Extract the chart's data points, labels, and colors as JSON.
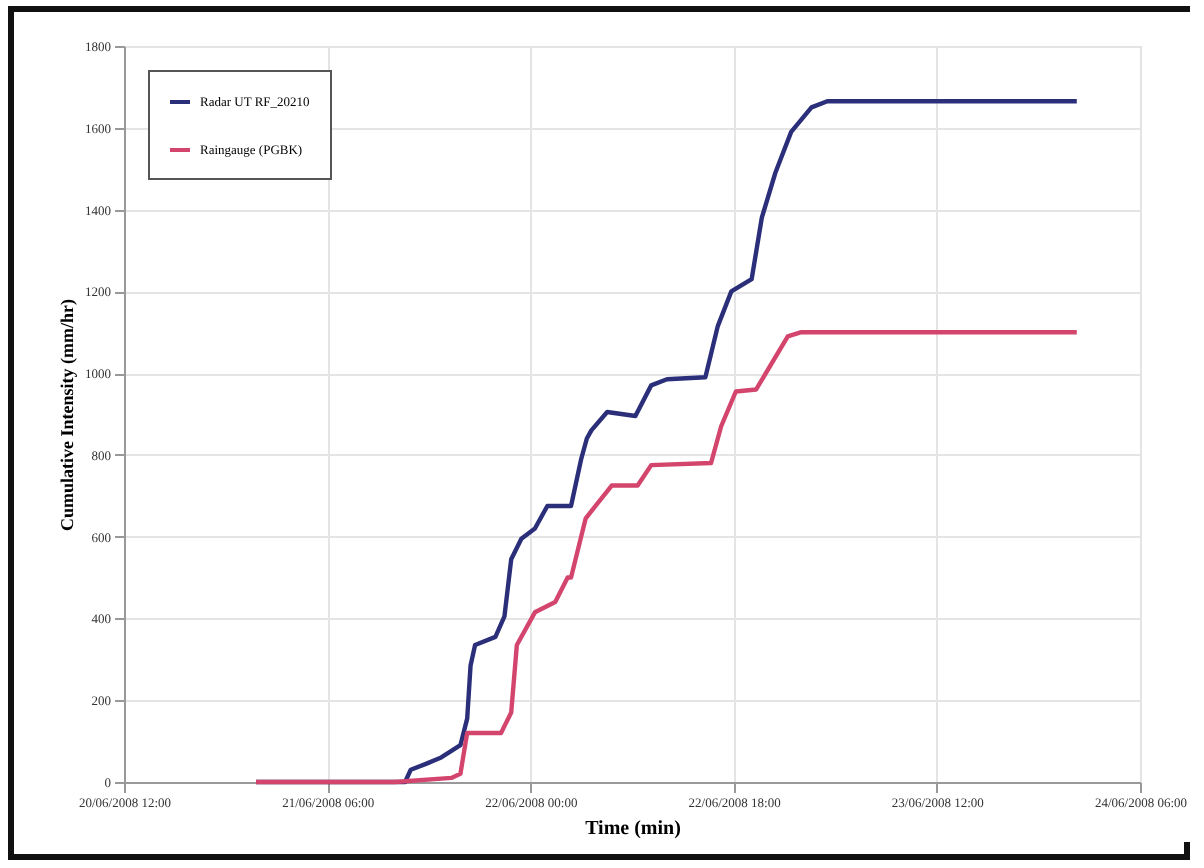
{
  "chart_data": {
    "type": "line",
    "xlabel": "Time (min)",
    "ylabel": "Cumulative Intensity (mm/hr)",
    "xlim": [
      "2008-06-20T12:00",
      "2008-06-24T06:00"
    ],
    "xticks": [
      {
        "value": "2008-06-20T12:00",
        "label": "20/06/2008 12:00"
      },
      {
        "value": "2008-06-21T06:00",
        "label": "21/06/2008 06:00"
      },
      {
        "value": "2008-06-22T00:00",
        "label": "22/06/2008 00:00"
      },
      {
        "value": "2008-06-22T18:00",
        "label": "22/06/2008 18:00"
      },
      {
        "value": "2008-06-23T12:00",
        "label": "23/06/2008 12:00"
      },
      {
        "value": "2008-06-24T06:00",
        "label": "24/06/2008 06:00"
      }
    ],
    "ylim": [
      0,
      1800
    ],
    "yticks": [
      0,
      200,
      400,
      600,
      800,
      1000,
      1200,
      1400,
      1600,
      1800
    ],
    "grid": true,
    "legend": "top left",
    "marker": "none",
    "line_style": "solid",
    "series": [
      {
        "name": "Radar UT RF_20210",
        "color": "#2b2f7a",
        "x": [
          "2008-06-20T23:42",
          "2008-06-21T12:54",
          "2008-06-21T13:24",
          "2008-06-21T14:48",
          "2008-06-21T16:06",
          "2008-06-21T17:48",
          "2008-06-21T18:24",
          "2008-06-21T18:42",
          "2008-06-21T19:06",
          "2008-06-21T20:54",
          "2008-06-21T21:42",
          "2008-06-21T22:18",
          "2008-06-21T23:12",
          "2008-06-22T00:24",
          "2008-06-22T01:30",
          "2008-06-22T03:36",
          "2008-06-22T04:30",
          "2008-06-22T05:00",
          "2008-06-22T05:24",
          "2008-06-22T06:48",
          "2008-06-22T09:18",
          "2008-06-22T10:42",
          "2008-06-22T12:06",
          "2008-06-22T15:30",
          "2008-06-22T16:36",
          "2008-06-22T17:48",
          "2008-06-22T19:36",
          "2008-06-22T20:30",
          "2008-06-22T21:42",
          "2008-06-22T23:06",
          "2008-06-23T00:54",
          "2008-06-23T02:18",
          "2008-06-24T00:24"
        ],
        "values": [
          0,
          0,
          30,
          45,
          60,
          90,
          155,
          285,
          335,
          355,
          405,
          545,
          595,
          620,
          675,
          675,
          790,
          840,
          860,
          905,
          895,
          970,
          985,
          990,
          1115,
          1200,
          1230,
          1380,
          1490,
          1590,
          1650,
          1665,
          1665
        ]
      },
      {
        "name": "Raingauge (PGBK)",
        "color": "#d4456e",
        "x": [
          "2008-06-20T23:42",
          "2008-06-21T12:00",
          "2008-06-21T17:00",
          "2008-06-21T17:48",
          "2008-06-21T18:24",
          "2008-06-21T21:24",
          "2008-06-21T22:18",
          "2008-06-21T22:48",
          "2008-06-22T00:24",
          "2008-06-22T02:12",
          "2008-06-22T03:18",
          "2008-06-22T03:36",
          "2008-06-22T04:54",
          "2008-06-22T07:12",
          "2008-06-22T09:30",
          "2008-06-22T10:42",
          "2008-06-22T16:00",
          "2008-06-22T16:54",
          "2008-06-22T18:12",
          "2008-06-22T20:00",
          "2008-06-22T22:48",
          "2008-06-23T00:00",
          "2008-06-24T00:24"
        ],
        "values": [
          0,
          0,
          10,
          20,
          120,
          120,
          170,
          335,
          415,
          440,
          500,
          500,
          645,
          725,
          725,
          775,
          780,
          870,
          955,
          960,
          1090,
          1100,
          1100
        ]
      }
    ]
  }
}
